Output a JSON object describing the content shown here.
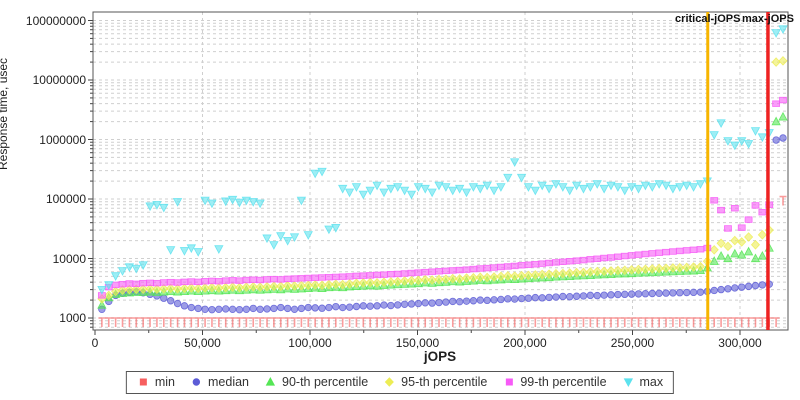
{
  "chart_data": {
    "type": "scatter",
    "title": "",
    "xlabel": "jOPS",
    "ylabel": "Response time, usec",
    "grid": true,
    "legend_position": "bottom-center",
    "colors": {
      "grid": "#cfcfcf",
      "border": "#555555",
      "text": "#1f1f1f",
      "background": "#ffffff"
    },
    "x_axis": {
      "scale": "linear",
      "min": 0,
      "max": 322000,
      "minor_tick_step": 25000,
      "ticks": [
        {
          "v": 0,
          "label": "0"
        },
        {
          "v": 50000,
          "label": "50,000"
        },
        {
          "v": 100000,
          "label": "100,000"
        },
        {
          "v": 150000,
          "label": "150,000"
        },
        {
          "v": 200000,
          "label": "200,000"
        },
        {
          "v": 250000,
          "label": "250,000"
        },
        {
          "v": 300000,
          "label": "300,000"
        }
      ]
    },
    "y_axis": {
      "scale": "log",
      "min": 630,
      "max": 140000000,
      "ticks": [
        {
          "v": 1000,
          "label": "1000"
        },
        {
          "v": 10000,
          "label": "10000"
        },
        {
          "v": 100000,
          "label": "100000"
        },
        {
          "v": 1000000,
          "label": "1000000"
        },
        {
          "v": 10000000,
          "label": "10000000"
        },
        {
          "v": 100000000,
          "label": "100000000"
        }
      ]
    },
    "vlines": [
      {
        "name": "critical-jOPS",
        "x": 285000,
        "color": "#f7b500",
        "width": 3
      },
      {
        "name": "max-jOPS",
        "x": 313000,
        "color": "#ee2222",
        "width": 3.5
      }
    ],
    "x_start": 3200,
    "x_step": 3200,
    "series": [
      {
        "name": "min",
        "marker": "tee",
        "legend_marker": "square",
        "color": "#f75f5f",
        "values": [
          1000,
          1000,
          1000,
          1000,
          1000,
          1000,
          1000,
          1000,
          1000,
          1000,
          1000,
          1000,
          1000,
          1000,
          1000,
          1000,
          1000,
          1000,
          1000,
          1000,
          1000,
          1000,
          1000,
          1000,
          1000,
          1000,
          1000,
          1000,
          1000,
          1000,
          1000,
          1000,
          1000,
          1000,
          1000,
          1000,
          1000,
          1000,
          1000,
          1000,
          1000,
          1000,
          1000,
          1000,
          1000,
          1000,
          1000,
          1000,
          1000,
          1000,
          1000,
          1000,
          1000,
          1000,
          1000,
          1000,
          1000,
          1000,
          1000,
          1000,
          1000,
          1000,
          1000,
          1000,
          1000,
          1000,
          1000,
          1000,
          1000,
          1000,
          1000,
          1000,
          1000,
          1000,
          1000,
          1000,
          1000,
          1000,
          1000,
          1000,
          1000,
          1000,
          1000,
          1000,
          1000,
          1000,
          1000,
          1000,
          1000,
          1000,
          1000,
          1000,
          1000,
          1000,
          1000,
          1000,
          1000,
          1000,
          1000,
          110000
        ]
      },
      {
        "name": "median",
        "marker": "circle",
        "legend_marker": "circle",
        "color": "#5c5cd6",
        "values": [
          1400,
          1900,
          2400,
          2600,
          2700,
          2750,
          2650,
          2500,
          2350,
          2150,
          1950,
          1750,
          1600,
          1500,
          1450,
          1400,
          1380,
          1400,
          1420,
          1400,
          1380,
          1400,
          1450,
          1400,
          1420,
          1450,
          1500,
          1450,
          1400,
          1450,
          1500,
          1480,
          1460,
          1500,
          1550,
          1500,
          1520,
          1560,
          1600,
          1580,
          1600,
          1650,
          1620,
          1660,
          1700,
          1720,
          1750,
          1800,
          1780,
          1820,
          1850,
          1900,
          1880,
          1920,
          1950,
          2000,
          1980,
          2020,
          2050,
          2100,
          2080,
          2120,
          2150,
          2200,
          2180,
          2220,
          2250,
          2300,
          2280,
          2320,
          2350,
          2400,
          2380,
          2420,
          2450,
          2480,
          2500,
          2520,
          2540,
          2560,
          2580,
          2600,
          2620,
          2640,
          2660,
          2680,
          2700,
          2720,
          2800,
          2900,
          3000,
          3100,
          3200,
          3300,
          3400,
          3500,
          3600,
          3700,
          980000,
          1060000
        ]
      },
      {
        "name": "90-th percentile",
        "marker": "triangle-up",
        "legend_marker": "triangle-up",
        "color": "#55e655",
        "values": [
          1650,
          2200,
          2500,
          2600,
          2650,
          2700,
          2700,
          2750,
          2700,
          2750,
          2800,
          2750,
          2800,
          2850,
          2800,
          2850,
          2900,
          2850,
          2900,
          2950,
          2900,
          2950,
          3000,
          2950,
          3000,
          3050,
          3000,
          3100,
          3050,
          3100,
          3150,
          3200,
          3150,
          3250,
          3300,
          3250,
          3350,
          3400,
          3450,
          3500,
          3450,
          3550,
          3600,
          3650,
          3700,
          3750,
          3800,
          3900,
          3850,
          3950,
          4000,
          4100,
          4050,
          4150,
          4200,
          4300,
          4250,
          4350,
          4400,
          4500,
          4450,
          4550,
          4600,
          4700,
          4750,
          4800,
          4900,
          4950,
          5000,
          5100,
          5150,
          5200,
          5300,
          5350,
          5400,
          5500,
          5550,
          5600,
          5700,
          5750,
          5800,
          5900,
          5950,
          6000,
          6100,
          6150,
          6200,
          6300,
          7000,
          9000,
          11000,
          10000,
          12000,
          11500,
          13000,
          10000,
          11000,
          15000,
          2000000,
          2400000
        ]
      },
      {
        "name": "95-th percentile",
        "marker": "diamond",
        "legend_marker": "diamond",
        "color": "#eded55",
        "values": [
          2100,
          2400,
          2800,
          2950,
          3000,
          3050,
          3050,
          3100,
          3050,
          3100,
          3150,
          3100,
          3150,
          3200,
          3150,
          3200,
          3250,
          3200,
          3250,
          3300,
          3250,
          3300,
          3350,
          3300,
          3350,
          3400,
          3400,
          3500,
          3450,
          3500,
          3550,
          3600,
          3550,
          3650,
          3700,
          3650,
          3750,
          3850,
          3900,
          3950,
          3900,
          4000,
          4050,
          4100,
          4200,
          4250,
          4300,
          4400,
          4350,
          4450,
          4500,
          4600,
          4550,
          4700,
          4750,
          4850,
          4800,
          4900,
          5000,
          5100,
          5050,
          5150,
          5200,
          5300,
          5400,
          5450,
          5550,
          5600,
          5700,
          5800,
          5850,
          5950,
          6050,
          6100,
          6200,
          6300,
          6350,
          6450,
          6550,
          6600,
          6700,
          6800,
          6850,
          6950,
          7000,
          7100,
          7200,
          7300,
          9000,
          14000,
          18000,
          16000,
          20000,
          19000,
          23000,
          17000,
          25000,
          30000,
          20000000,
          21000000
        ]
      },
      {
        "name": "99-th percentile",
        "marker": "square",
        "legend_marker": "square",
        "color": "#f75af7",
        "values": [
          2400,
          3300,
          3600,
          3700,
          3800,
          3750,
          3850,
          3900,
          3850,
          3950,
          4000,
          3950,
          4050,
          4100,
          4050,
          4150,
          4200,
          4150,
          4250,
          4300,
          4250,
          4350,
          4400,
          4350,
          4450,
          4500,
          4450,
          4550,
          4600,
          4650,
          4700,
          4750,
          4800,
          4850,
          4900,
          4950,
          5000,
          5100,
          5150,
          5200,
          5300,
          5350,
          5450,
          5500,
          5600,
          5700,
          5800,
          5900,
          6000,
          6100,
          6200,
          6300,
          6400,
          6500,
          6650,
          6800,
          6900,
          7050,
          7200,
          7350,
          7500,
          7700,
          7850,
          8000,
          8200,
          8400,
          8600,
          8800,
          9000,
          9200,
          9400,
          9700,
          9900,
          10200,
          10400,
          10700,
          11000,
          11300,
          11600,
          11900,
          12200,
          12500,
          12800,
          13100,
          13400,
          13700,
          14000,
          14300,
          15000,
          95000,
          65000,
          32000,
          70000,
          33000,
          45000,
          78000,
          60000,
          80000,
          4000000,
          4600000
        ]
      },
      {
        "name": "max",
        "marker": "triangle-down",
        "legend_marker": "triangle-down",
        "color": "#5ce2ee",
        "values": [
          3000,
          3600,
          5100,
          6200,
          7200,
          6800,
          7800,
          76000,
          80000,
          72000,
          14000,
          90000,
          13500,
          15000,
          13000,
          95000,
          85000,
          14500,
          92000,
          98000,
          88000,
          95000,
          90000,
          85000,
          22000,
          17000,
          24000,
          20000,
          23000,
          95000,
          25000,
          270000,
          290000,
          31000,
          33000,
          150000,
          130000,
          160000,
          120000,
          140000,
          170000,
          130000,
          150000,
          160000,
          140000,
          120000,
          160000,
          150000,
          130000,
          170000,
          160000,
          140000,
          150000,
          130000,
          160000,
          150000,
          170000,
          140000,
          160000,
          230000,
          420000,
          230000,
          160000,
          140000,
          170000,
          150000,
          180000,
          160000,
          140000,
          170000,
          150000,
          160000,
          180000,
          150000,
          170000,
          160000,
          140000,
          160000,
          150000,
          170000,
          160000,
          180000,
          170000,
          150000,
          160000,
          170000,
          160000,
          180000,
          200000,
          1200000,
          1900000,
          950000,
          800000,
          950000,
          850000,
          1400000,
          1100000,
          1300000,
          62000000,
          72000000
        ]
      }
    ]
  }
}
